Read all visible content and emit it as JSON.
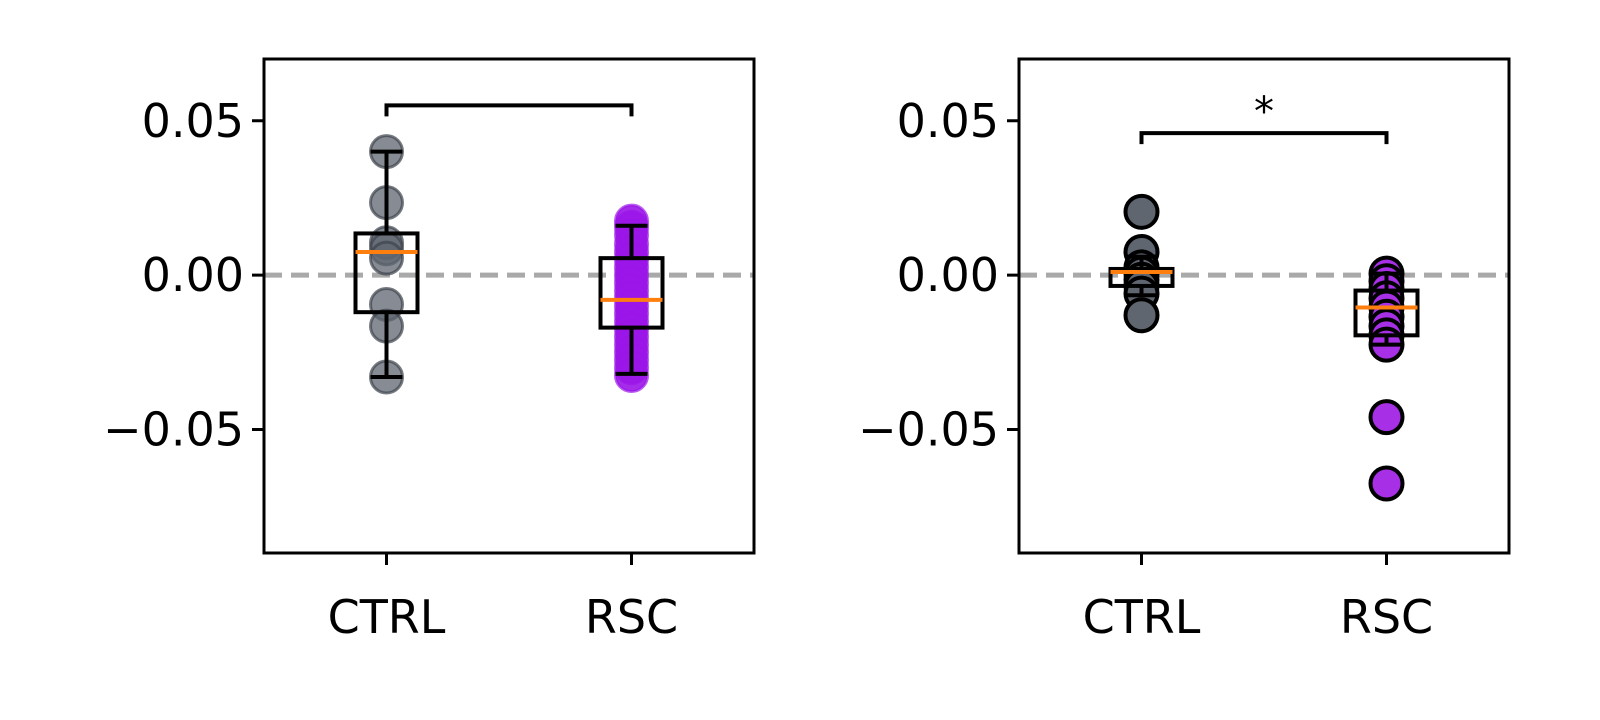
{
  "colors": {
    "ctrl_fill": "#5f6670",
    "rsc_fill": "#9b16e8",
    "rsc_fill_right": "#a730e6",
    "median": "#ff7f0e",
    "zero_line": "#a9a9a9",
    "box": "#000000"
  },
  "chart_data": [
    {
      "type": "box",
      "categories": [
        "CTRL",
        "RSC"
      ],
      "ylim": [
        -0.09,
        0.07
      ],
      "yticks": [
        0.05,
        0.0,
        -0.05
      ],
      "ytick_labels": [
        "0.05",
        "0.00",
        "−0.05"
      ],
      "reference_line": {
        "y": 0.0,
        "style": "dashed"
      },
      "points_style": "translucent",
      "boxes": [
        {
          "category": "CTRL",
          "whisker_low": -0.033,
          "q1": -0.012,
          "median": 0.0075,
          "q3": 0.0135,
          "whisker_high": 0.04
        },
        {
          "category": "RSC",
          "whisker_low": -0.032,
          "q1": -0.017,
          "median": -0.008,
          "q3": 0.0055,
          "whisker_high": 0.016
        }
      ],
      "points": [
        {
          "category": "CTRL",
          "values": [
            0.04,
            0.0235,
            0.0105,
            0.0085,
            0.0055,
            -0.0095,
            -0.0165,
            -0.033
          ]
        },
        {
          "category": "RSC",
          "values": [
            0.0175,
            0.0155,
            0.013,
            0.01,
            0.0075,
            0.005,
            0.0025,
            0.0,
            -0.0025,
            -0.005,
            -0.0075,
            -0.01,
            -0.0125,
            -0.015,
            -0.0175,
            -0.02,
            -0.0225,
            -0.025,
            -0.0275,
            -0.03,
            -0.0325
          ]
        }
      ],
      "comparison": {
        "between": [
          "CTRL",
          "RSC"
        ],
        "y": 0.055,
        "label": ""
      }
    },
    {
      "type": "box",
      "categories": [
        "CTRL",
        "RSC"
      ],
      "ylim": [
        -0.09,
        0.07
      ],
      "yticks": [
        0.05,
        0.0,
        -0.05
      ],
      "ytick_labels": [
        "0.05",
        "0.00",
        "−0.05"
      ],
      "reference_line": {
        "y": 0.0,
        "style": "dashed"
      },
      "points_style": "outlined",
      "boxes": [
        {
          "category": "CTRL",
          "whisker_low": -0.0065,
          "q1": -0.0035,
          "median": 0.001,
          "q3": 0.002,
          "whisker_high": 0.006
        },
        {
          "category": "RSC",
          "whisker_low": -0.0225,
          "q1": -0.0195,
          "median": -0.0105,
          "q3": -0.005,
          "whisker_high": 0.0005
        }
      ],
      "points": [
        {
          "category": "CTRL",
          "values": [
            0.0205,
            0.0075,
            0.0025,
            0.0005,
            -0.0015,
            -0.0035,
            -0.006,
            -0.013
          ]
        },
        {
          "category": "RSC",
          "values": [
            0.0005,
            -0.002,
            -0.0045,
            -0.0075,
            -0.0105,
            -0.0135,
            -0.0165,
            -0.0195,
            -0.0225,
            -0.046,
            -0.0675
          ]
        }
      ],
      "comparison": {
        "between": [
          "CTRL",
          "RSC"
        ],
        "y": 0.046,
        "label": "*"
      }
    }
  ]
}
